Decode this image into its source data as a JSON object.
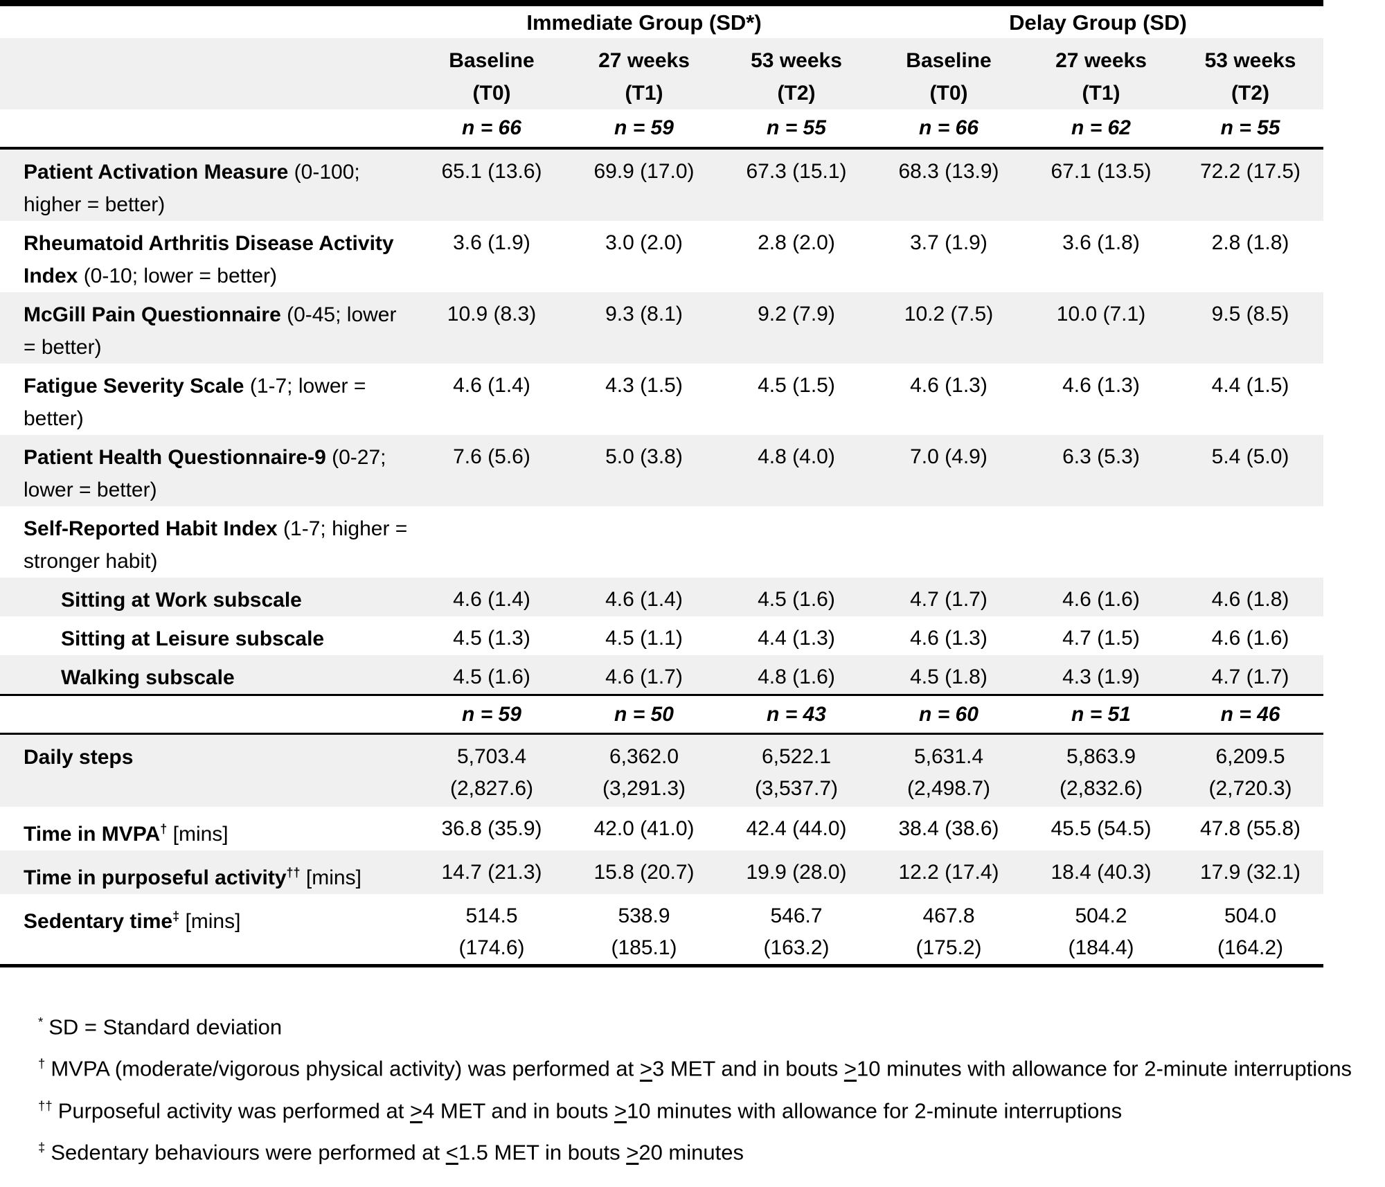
{
  "table": {
    "group_headers": [
      {
        "label": "Immediate Group (SD*)"
      },
      {
        "label": "Delay Group (SD)"
      }
    ],
    "columns": [
      {
        "period": "Baseline",
        "timepoint": "(T0)"
      },
      {
        "period": "27 weeks",
        "timepoint": "(T1)"
      },
      {
        "period": "53 weeks",
        "timepoint": "(T2)"
      },
      {
        "period": "Baseline",
        "timepoint": "(T0)"
      },
      {
        "period": "27 weeks",
        "timepoint": "(T1)"
      },
      {
        "period": "53 weeks",
        "timepoint": "(T2)"
      }
    ],
    "sample_sizes_row1": [
      "n = 66",
      "n = 59",
      "n = 55",
      "n = 66",
      "n = 62",
      "n = 55"
    ],
    "rows_part1": [
      {
        "name": "Patient Activation Measure",
        "qualifier": " (0-100; higher = better)",
        "values": [
          "65.1 (13.6)",
          "69.9 (17.0)",
          "67.3 (15.1)",
          "68.3 (13.9)",
          "67.1 (13.5)",
          "72.2 (17.5)"
        ]
      },
      {
        "name": "Rheumatoid Arthritis Disease Activity Index",
        "qualifier": " (0-10; lower = better)",
        "values": [
          "3.6 (1.9)",
          "3.0 (2.0)",
          "2.8 (2.0)",
          "3.7 (1.9)",
          "3.6 (1.8)",
          "2.8 (1.8)"
        ]
      },
      {
        "name": "McGill Pain Questionnaire",
        "qualifier": " (0-45; lower = better)",
        "values": [
          "10.9 (8.3)",
          "9.3 (8.1)",
          "9.2 (7.9)",
          "10.2 (7.5)",
          "10.0 (7.1)",
          "9.5 (8.5)"
        ]
      },
      {
        "name": "Fatigue Severity Scale",
        "qualifier": " (1-7; lower = better)",
        "values": [
          "4.6 (1.4)",
          "4.3 (1.5)",
          "4.5 (1.5)",
          "4.6 (1.3)",
          "4.6 (1.3)",
          "4.4 (1.5)"
        ]
      },
      {
        "name": "Patient Health Questionnaire-9",
        "qualifier": " (0-27; lower = better)",
        "values": [
          "7.6 (5.6)",
          "5.0 (3.8)",
          "4.8 (4.0)",
          "7.0 (4.9)",
          "6.3 (5.3)",
          "5.4 (5.0)"
        ]
      },
      {
        "name": "Self-Reported Habit Index",
        "qualifier": " (1-7; higher = stronger habit)"
      },
      {
        "name": "Sitting at Work subscale",
        "values": [
          "4.6 (1.4)",
          "4.6 (1.4)",
          "4.5 (1.6)",
          "4.7 (1.7)",
          "4.6 (1.6)",
          "4.6 (1.8)"
        ]
      },
      {
        "name": "Sitting at Leisure subscale",
        "values": [
          "4.5 (1.3)",
          "4.5 (1.1)",
          "4.4 (1.3)",
          "4.6 (1.3)",
          "4.7 (1.5)",
          "4.6 (1.6)"
        ]
      },
      {
        "name": "Walking subscale",
        "values": [
          "4.5 (1.6)",
          "4.6 (1.7)",
          "4.8 (1.6)",
          "4.5 (1.8)",
          "4.3 (1.9)",
          "4.7 (1.7)"
        ]
      }
    ],
    "sample_sizes_row2": [
      "n = 59",
      "n = 50",
      "n = 43",
      "n = 60",
      "n = 51",
      "n = 46"
    ],
    "rows_part2": [
      {
        "name": "Daily steps",
        "values": [
          "5,703.4\n(2,827.6)",
          "6,362.0\n(3,291.3)",
          "6,522.1\n(3,537.7)",
          "5,631.4\n(2,498.7)",
          "5,863.9\n(2,832.6)",
          "6,209.5\n(2,720.3)"
        ]
      },
      {
        "name": "Time in MVPA",
        "marker": "†",
        "qualifier": " [mins]",
        "values": [
          "36.8 (35.9)",
          "42.0 (41.0)",
          "42.4 (44.0)",
          "38.4 (38.6)",
          "45.5 (54.5)",
          "47.8 (55.8)"
        ]
      },
      {
        "name": "Time in purposeful activity",
        "marker": "††",
        "qualifier": " [mins]",
        "values": [
          "14.7 (21.3)",
          "15.8 (20.7)",
          "19.9 (28.0)",
          "12.2 (17.4)",
          "18.4 (40.3)",
          "17.9 (32.1)"
        ]
      },
      {
        "name": "Sedentary time",
        "marker": "‡",
        "qualifier": " [mins]",
        "values": [
          "514.5\n(174.6)",
          "538.9\n(185.1)",
          "546.7\n(163.2)",
          "467.8\n(175.2)",
          "504.2\n(184.4)",
          "504.0\n(164.2)"
        ]
      }
    ]
  },
  "footnotes": [
    {
      "marker": "*",
      "text": "SD = Standard deviation"
    },
    {
      "marker": "†",
      "text": "MVPA (moderate/vigorous physical activity) was performed at ≥3 MET and in bouts ≥10 minutes with allowance for 2-minute interruptions"
    },
    {
      "marker": "††",
      "text": "Purposeful activity was performed at ≥4 MET and in bouts ≥10 minutes with allowance for 2-minute interruptions"
    },
    {
      "marker": "‡",
      "text": "Sedentary behaviours were performed at ≤1.5 MET in bouts ≥20 minutes"
    }
  ]
}
